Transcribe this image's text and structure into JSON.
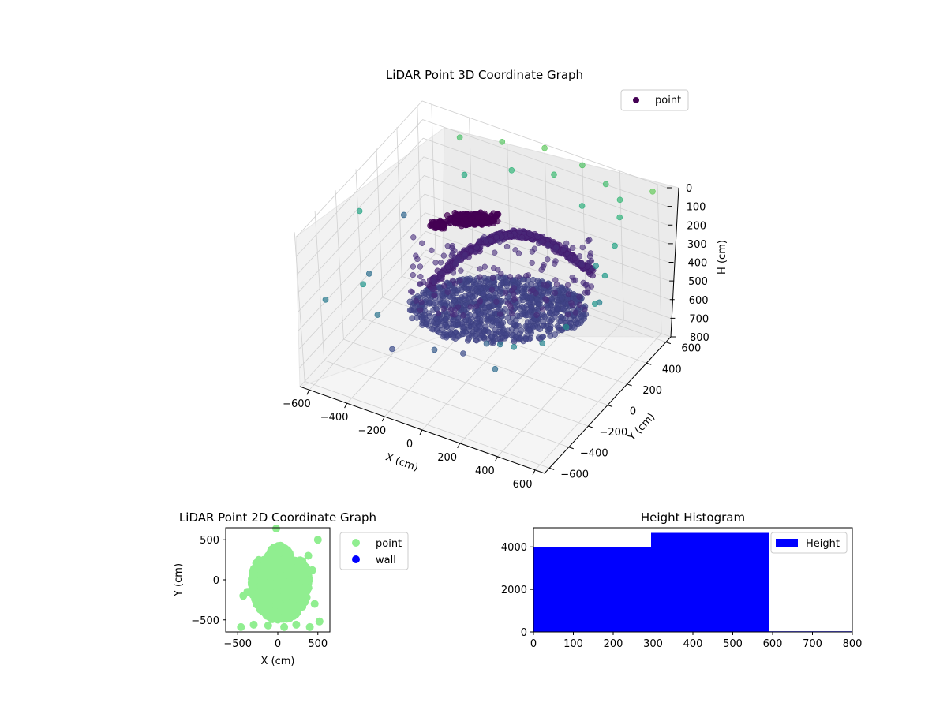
{
  "chart_data": [
    {
      "type": "scatter3d",
      "title": "LiDAR Point 3D Coordinate Graph",
      "xlabel": "X (cm)",
      "ylabel": "Y (cm)",
      "zlabel": "H (cm)",
      "x_ticks": [
        "−600",
        "−400",
        "−200",
        "0",
        "200",
        "400",
        "600"
      ],
      "y_ticks": [
        "−600",
        "−400",
        "−200",
        "0",
        "200",
        "400",
        "600"
      ],
      "z_ticks": [
        "0",
        "100",
        "200",
        "300",
        "400",
        "500",
        "600",
        "700",
        "800"
      ],
      "xlim": [
        -650,
        650
      ],
      "ylim": [
        -650,
        650
      ],
      "zlim": [
        0,
        800
      ],
      "z_inverted": true,
      "colormap": "viridis",
      "legend": {
        "position": "top-right",
        "entries": [
          {
            "name": "point",
            "color": "#440154"
          }
        ]
      },
      "series": [
        {
          "name": "point",
          "description_note": "",
          "points": [
            [
              -600,
              -100,
              150
            ],
            [
              -550,
              250,
              350
            ],
            [
              -350,
              -550,
              200
            ],
            [
              -450,
              -300,
              320
            ],
            [
              -250,
              -600,
              300
            ],
            [
              -150,
              -650,
              420
            ],
            [
              50,
              -600,
              380
            ],
            [
              150,
              -500,
              420
            ],
            [
              250,
              -450,
              360
            ],
            [
              350,
              -500,
              300
            ],
            [
              450,
              -550,
              250
            ],
            [
              550,
              -450,
              250
            ],
            [
              600,
              -300,
              230
            ],
            [
              650,
              -100,
              200
            ],
            [
              600,
              100,
              180
            ],
            [
              550,
              300,
              150
            ],
            [
              500,
              450,
              100
            ],
            [
              450,
              550,
              80
            ],
            [
              350,
              600,
              60
            ],
            [
              200,
              650,
              40
            ],
            [
              0,
              650,
              20
            ],
            [
              -200,
              600,
              30
            ],
            [
              -400,
              550,
              50
            ],
            [
              600,
              600,
              10
            ],
            [
              -100,
              500,
              90
            ],
            [
              100,
              550,
              70
            ],
            [
              300,
              450,
              110
            ],
            [
              -300,
              400,
              130
            ],
            [
              500,
              200,
              220
            ],
            [
              620,
              0,
              260
            ],
            [
              400,
              -650,
              330
            ],
            [
              -500,
              -650,
              280
            ]
          ]
        }
      ]
    },
    {
      "type": "scatter",
      "title": "LiDAR Point 2D Coordinate Graph",
      "xlabel": "X (cm)",
      "ylabel": "Y (cm)",
      "xlim": [
        -650,
        650
      ],
      "ylim": [
        -650,
        650
      ],
      "x_ticks": [
        "−500",
        "0",
        "500"
      ],
      "y_ticks": [
        "500",
        "0",
        "−500"
      ],
      "legend": {
        "position": "outside-right",
        "entries": [
          {
            "name": "point",
            "color": "#90ee90"
          },
          {
            "name": "wall",
            "color": "#0000ff"
          }
        ]
      },
      "series": [
        {
          "name": "point",
          "color": "#90ee90",
          "points": [
            [
              -460,
              -590
            ],
            [
              -300,
              -560
            ],
            [
              -120,
              -570
            ],
            [
              80,
              -590
            ],
            [
              230,
              -560
            ],
            [
              400,
              -590
            ],
            [
              520,
              -520
            ],
            [
              500,
              500
            ],
            [
              -20,
              640
            ],
            [
              -430,
              -200
            ],
            [
              -380,
              -150
            ],
            [
              430,
              120
            ],
            [
              460,
              -300
            ],
            [
              380,
              300
            ]
          ]
        },
        {
          "name": "wall",
          "color": "#0000ff",
          "points": []
        }
      ]
    },
    {
      "type": "bar",
      "title": "Height Histogram",
      "xlim": [
        0,
        800
      ],
      "ylim": [
        0,
        4900
      ],
      "x_ticks": [
        "0",
        "100",
        "200",
        "300",
        "400",
        "500",
        "600",
        "700",
        "800"
      ],
      "y_ticks": [
        "0",
        "2000",
        "4000"
      ],
      "legend": {
        "position": "top-right",
        "entries": [
          {
            "name": "Height",
            "color": "#0000ff"
          }
        ]
      },
      "series": [
        {
          "name": "Height",
          "color": "#0000ff",
          "bins": [
            [
              0,
              295,
              3980
            ],
            [
              295,
              590,
              4660
            ],
            [
              590,
              800,
              30
            ]
          ]
        }
      ]
    }
  ]
}
